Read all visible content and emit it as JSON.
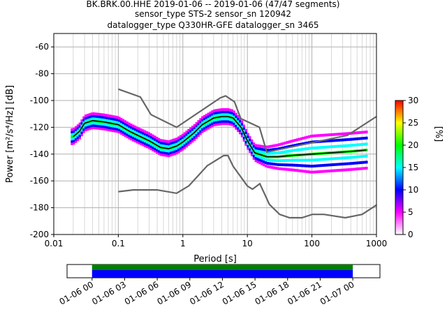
{
  "header": {
    "line1": "BK.BRK.00.HHE   2019-01-06 -- 2019-01-06  (47/47 segments)",
    "line2": "sensor_type STS-2 sensor_sn 120942",
    "line3": "datalogger_type Q330HR-GFE datalogger_sn 3465"
  },
  "chart_data": [
    {
      "type": "heatmap",
      "title": "BK.BRK.00.HHE   2019-01-06 -- 2019-01-06  (47/47 segments)",
      "xlabel": "Period [s]",
      "ylabel": "Power [m²/s⁴/Hz] [dB]",
      "x_scale": "log",
      "xlim": [
        0.01,
        1000
      ],
      "ylim": [
        -200,
        -50
      ],
      "x_ticks": [
        "0.01",
        "0.1",
        "1",
        "10",
        "100",
        "1000"
      ],
      "y_ticks": [
        "-60",
        "-80",
        "-100",
        "-120",
        "-140",
        "-160",
        "-180",
        "-200"
      ],
      "grid": true,
      "colorbar": {
        "label": "[%]",
        "range": [
          0,
          30
        ],
        "ticks": [
          "0",
          "5",
          "10",
          "15",
          "20",
          "25",
          "30"
        ],
        "colors": [
          "#ffffff",
          "#ff00ff",
          "#0000ff",
          "#00ffff",
          "#00ff00",
          "#ffff00",
          "#ff0000"
        ]
      },
      "series": [
        {
          "name": "mean",
          "color": "#000000",
          "x": [
            0.02,
            0.025,
            0.03,
            0.04,
            0.06,
            0.1,
            0.15,
            0.2,
            0.3,
            0.45,
            0.6,
            0.8,
            1.0,
            1.5,
            2.0,
            3.0,
            4.0,
            5.0,
            6.0,
            8.0,
            10.0,
            13.0,
            20.0,
            30.0,
            50.0,
            100.0,
            200.0,
            400.0,
            700.0
          ],
          "y": [
            -127,
            -123,
            -117,
            -115,
            -116,
            -118,
            -123,
            -126,
            -130,
            -135,
            -136,
            -134,
            -131,
            -124,
            -118,
            -113,
            -112,
            -112,
            -113,
            -120,
            -130,
            -139,
            -142,
            -142,
            -141,
            -140,
            -139,
            -138,
            -137
          ]
        },
        {
          "name": "NHNM",
          "color": "#666666",
          "x": [
            0.1,
            0.22,
            0.32,
            0.8,
            3.8,
            4.6,
            6.3,
            7.9,
            15.4,
            20,
            354.8,
            1000
          ],
          "y": [
            -91.5,
            -97.4,
            -110.5,
            -120,
            -98,
            -96.5,
            -101,
            -113.5,
            -120,
            -138.5,
            -126,
            -112
          ]
        },
        {
          "name": "NLNM",
          "color": "#666666",
          "x": [
            0.1,
            0.17,
            0.4,
            0.8,
            1.24,
            2.4,
            4.3,
            5.0,
            6.0,
            10.0,
            12.0,
            15.6,
            21.9,
            31.6,
            45,
            70,
            101,
            154,
            328,
            600,
            1000
          ],
          "y": [
            -168,
            -166.7,
            -166.7,
            -169.2,
            -163.7,
            -148.6,
            -141.1,
            -141.1,
            -149,
            -163.8,
            -166.2,
            -162.1,
            -177.5,
            -185,
            -187.5,
            -187.5,
            -185,
            -185,
            -187.5,
            -185,
            -178
          ]
        }
      ]
    },
    {
      "type": "bar",
      "title": "",
      "x_tick_labels": [
        "01-06 00",
        "01-06 03",
        "01-06 06",
        "01-06 09",
        "01-06 12",
        "01-06 15",
        "01-06 18",
        "01-06 21",
        "01-07 00"
      ],
      "xlim_hours": [
        -2.3,
        26.5
      ],
      "bands": [
        {
          "name": "coverage",
          "start_hour": 0,
          "end_hour": 24,
          "color": "#008000"
        },
        {
          "name": "data",
          "start_hour": 0,
          "end_hour": 24,
          "color": "#0000ff"
        }
      ]
    }
  ]
}
